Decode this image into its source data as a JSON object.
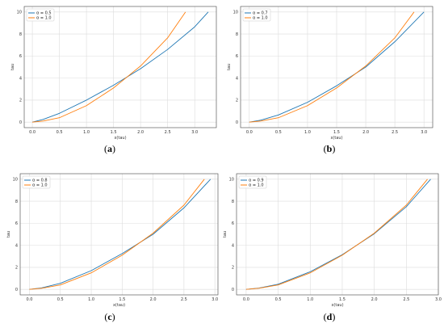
{
  "colors": {
    "series_1": "#1f77b4",
    "series_2": "#ff7f0e",
    "grid": "#dcdcdc",
    "axis": "#444444"
  },
  "chart_data": [
    {
      "type": "line",
      "panel_label": "a",
      "xlabel": "x(tau)",
      "ylabel": "tau",
      "xlim": [
        -0.15,
        3.4
      ],
      "ylim": [
        -0.5,
        10.5
      ],
      "xticks": [
        "0.0",
        "0.5",
        "1.0",
        "1.5",
        "2.0",
        "2.5",
        "3.0"
      ],
      "yticks": [
        "0",
        "2",
        "4",
        "6",
        "8",
        "10"
      ],
      "grid": true,
      "legend_placement": "top-left",
      "series": [
        {
          "name": "α = 0.5",
          "color": "#1f77b4",
          "x": [
            0,
            0.2,
            0.5,
            1.0,
            1.5,
            1.8,
            2.0,
            2.5,
            3.0,
            3.25
          ],
          "y": [
            0,
            0.25,
            0.8,
            2.0,
            3.35,
            4.25,
            4.85,
            6.6,
            8.65,
            10
          ]
        },
        {
          "name": "α = 1.0",
          "color": "#ff7f0e",
          "x": [
            0,
            0.2,
            0.5,
            1.0,
            1.5,
            1.8,
            2.0,
            2.5,
            2.83
          ],
          "y": [
            0,
            0.1,
            0.4,
            1.5,
            3.1,
            4.3,
            5.1,
            7.65,
            10
          ]
        }
      ]
    },
    {
      "type": "line",
      "panel_label": "b",
      "xlabel": "x(tau)",
      "ylabel": "tau",
      "xlim": [
        -0.15,
        3.15
      ],
      "ylim": [
        -0.5,
        10.5
      ],
      "xticks": [
        "0.0",
        "0.5",
        "1.0",
        "1.5",
        "2.0",
        "2.5",
        "3.0"
      ],
      "yticks": [
        "0",
        "2",
        "4",
        "6",
        "8",
        "10"
      ],
      "grid": true,
      "legend_placement": "top-left",
      "series": [
        {
          "name": "α = 0.7",
          "color": "#1f77b4",
          "x": [
            0,
            0.2,
            0.5,
            1.0,
            1.5,
            2.0,
            2.5,
            3.0
          ],
          "y": [
            0,
            0.18,
            0.65,
            1.8,
            3.3,
            5.0,
            7.3,
            10
          ]
        },
        {
          "name": "α = 1.0",
          "color": "#ff7f0e",
          "x": [
            0,
            0.2,
            0.5,
            1.0,
            1.5,
            2.0,
            2.5,
            2.83
          ],
          "y": [
            0,
            0.1,
            0.4,
            1.5,
            3.1,
            5.1,
            7.65,
            10
          ]
        }
      ]
    },
    {
      "type": "line",
      "panel_label": "c",
      "xlabel": "x(tau)",
      "ylabel": "tau",
      "xlim": [
        -0.15,
        3.05
      ],
      "ylim": [
        -0.5,
        10.5
      ],
      "xticks": [
        "0.0",
        "0.5",
        "1.0",
        "1.5",
        "2.0",
        "2.5",
        "3.0"
      ],
      "yticks": [
        "0",
        "2",
        "4",
        "6",
        "8",
        "10"
      ],
      "grid": true,
      "legend_placement": "top-left",
      "series": [
        {
          "name": "α = 0.8",
          "color": "#1f77b4",
          "x": [
            0,
            0.2,
            0.5,
            1.0,
            1.5,
            2.0,
            2.5,
            2.93
          ],
          "y": [
            0,
            0.14,
            0.55,
            1.7,
            3.25,
            5.0,
            7.4,
            10
          ]
        },
        {
          "name": "α = 1.0",
          "color": "#ff7f0e",
          "x": [
            0,
            0.2,
            0.5,
            1.0,
            1.5,
            2.0,
            2.5,
            2.83
          ],
          "y": [
            0,
            0.1,
            0.4,
            1.5,
            3.1,
            5.1,
            7.65,
            10
          ]
        }
      ]
    },
    {
      "type": "line",
      "panel_label": "d",
      "xlabel": "x(tau)",
      "ylabel": "tau",
      "xlim": [
        -0.15,
        3.0
      ],
      "ylim": [
        -0.5,
        10.5
      ],
      "xticks": [
        "0.0",
        "0.5",
        "1.0",
        "1.5",
        "2.0",
        "2.5",
        "3.0"
      ],
      "yticks": [
        "0",
        "2",
        "4",
        "6",
        "8",
        "10"
      ],
      "grid": true,
      "legend_placement": "top-left",
      "series": [
        {
          "name": "α = 0.9",
          "color": "#1f77b4",
          "x": [
            0,
            0.2,
            0.5,
            1.0,
            1.5,
            2.0,
            2.5,
            2.88
          ],
          "y": [
            0,
            0.12,
            0.47,
            1.6,
            3.15,
            5.05,
            7.5,
            10
          ]
        },
        {
          "name": "α = 1.0",
          "color": "#ff7f0e",
          "x": [
            0,
            0.2,
            0.5,
            1.0,
            1.5,
            2.0,
            2.5,
            2.83
          ],
          "y": [
            0,
            0.1,
            0.4,
            1.5,
            3.1,
            5.1,
            7.65,
            10
          ]
        }
      ]
    }
  ]
}
